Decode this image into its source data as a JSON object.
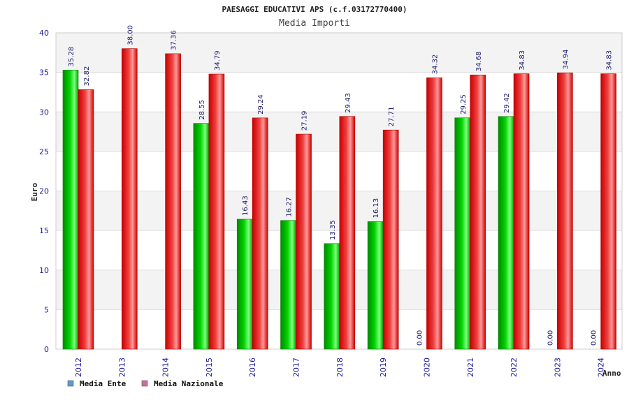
{
  "chart_data": {
    "type": "bar",
    "title": "PAESAGGI EDUCATIVI APS (c.f.03172770400)",
    "subtitle": "Media Importi",
    "xlabel": "Anno",
    "ylabel": "Euro",
    "ylim": [
      0,
      40
    ],
    "yticks": [
      0,
      5,
      10,
      15,
      20,
      25,
      30,
      35,
      40
    ],
    "grid": true,
    "legend_position": "bottom-left",
    "categories": [
      "2012",
      "2013",
      "2014",
      "2015",
      "2016",
      "2017",
      "2018",
      "2019",
      "2020",
      "2021",
      "2022",
      "2023",
      "2024"
    ],
    "series": [
      {
        "name": "Media Ente",
        "color": "#00c000",
        "legend_color": "#5b9bd5",
        "values": [
          35.28,
          null,
          null,
          28.55,
          16.43,
          16.27,
          13.35,
          16.13,
          0.0,
          29.25,
          29.42,
          0.0,
          0.0
        ],
        "labels": [
          "35.28",
          "",
          "",
          "28.55",
          "16.43",
          "16.27",
          "13.35",
          "16.13",
          "0.00",
          "29.25",
          "29.42",
          "0.00",
          "0.00"
        ]
      },
      {
        "name": "Media Nazionale",
        "color": "#e00000",
        "legend_color": "#d36aa0",
        "values": [
          32.82,
          38.0,
          37.36,
          34.79,
          29.24,
          27.19,
          29.43,
          27.71,
          34.32,
          34.68,
          34.83,
          34.94,
          34.83
        ],
        "labels": [
          "32.82",
          "38.00",
          "37.36",
          "34.79",
          "29.24",
          "27.19",
          "29.43",
          "27.71",
          "34.32",
          "34.68",
          "34.83",
          "34.94",
          "34.83"
        ]
      }
    ]
  }
}
